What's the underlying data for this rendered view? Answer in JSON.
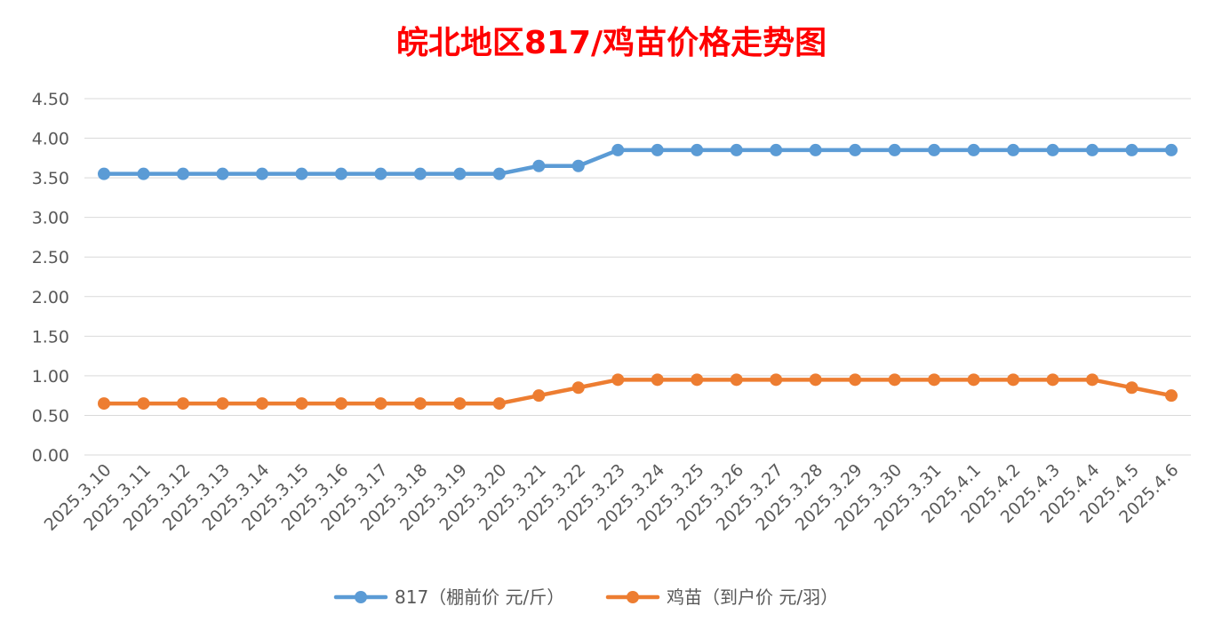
{
  "chart_data": {
    "type": "line",
    "title": "皖北地区817/鸡苗价格走势图",
    "xlabel": "",
    "ylabel": "",
    "ylim": [
      0,
      4.5
    ],
    "y_ticks": [
      "0.00",
      "0.50",
      "1.00",
      "1.50",
      "2.00",
      "2.50",
      "3.00",
      "3.50",
      "4.00",
      "4.50"
    ],
    "grid": true,
    "legend_position": "bottom",
    "categories": [
      "2025.3.10",
      "2025.3.11",
      "2025.3.12",
      "2025.3.13",
      "2025.3.14",
      "2025.3.15",
      "2025.3.16",
      "2025.3.17",
      "2025.3.18",
      "2025.3.19",
      "2025.3.20",
      "2025.3.21",
      "2025.3.22",
      "2025.3.23",
      "2025.3.24",
      "2025.3.25",
      "2025.3.26",
      "2025.3.27",
      "2025.3.28",
      "2025.3.29",
      "2025.3.30",
      "2025.3.31",
      "2025.4.1",
      "2025.4.2",
      "2025.4.3",
      "2025.4.4",
      "2025.4.5",
      "2025.4.6"
    ],
    "series": [
      {
        "name": "817（棚前价 元/斤）",
        "color": "#5B9BD5",
        "values": [
          3.55,
          3.55,
          3.55,
          3.55,
          3.55,
          3.55,
          3.55,
          3.55,
          3.55,
          3.55,
          3.55,
          3.65,
          3.65,
          3.85,
          3.85,
          3.85,
          3.85,
          3.85,
          3.85,
          3.85,
          3.85,
          3.85,
          3.85,
          3.85,
          3.85,
          3.85,
          3.85,
          3.85
        ]
      },
      {
        "name": "鸡苗（到户价 元/羽）",
        "color": "#ED7D31",
        "values": [
          0.65,
          0.65,
          0.65,
          0.65,
          0.65,
          0.65,
          0.65,
          0.65,
          0.65,
          0.65,
          0.65,
          0.75,
          0.85,
          0.95,
          0.95,
          0.95,
          0.95,
          0.95,
          0.95,
          0.95,
          0.95,
          0.95,
          0.95,
          0.95,
          0.95,
          0.95,
          0.85,
          0.75
        ]
      }
    ]
  }
}
